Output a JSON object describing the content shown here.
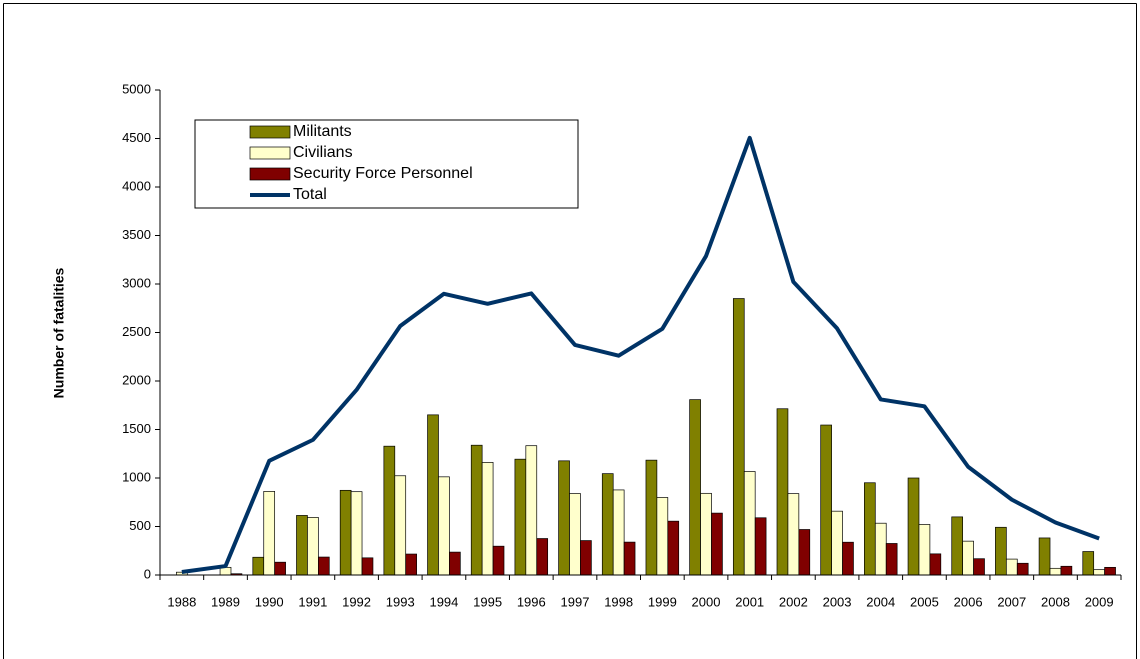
{
  "chart_data": {
    "type": "bar-line",
    "y_label": "Number of fatalities",
    "categories": [
      "1988",
      "1989",
      "1990",
      "1991",
      "1992",
      "1993",
      "1994",
      "1995",
      "1996",
      "1997",
      "1998",
      "1999",
      "2000",
      "2001",
      "2002",
      "2003",
      "2004",
      "2005",
      "2006",
      "2007",
      "2008",
      "2009"
    ],
    "series": [
      {
        "name": "Militants",
        "color": "#808000",
        "kind": "bar",
        "values": [
          1,
          0,
          183,
          614,
          873,
          1328,
          1651,
          1338,
          1194,
          1177,
          1045,
          1184,
          1808,
          2850,
          1714,
          1546,
          951,
          1000,
          599,
          492,
          382,
          242
        ]
      },
      {
        "name": "Civilians",
        "color": "#ffffcc",
        "kind": "bar",
        "values": [
          29,
          79,
          862,
          594,
          859,
          1023,
          1012,
          1161,
          1333,
          840,
          877,
          799,
          842,
          1067,
          839,
          658,
          534,
          521,
          349,
          164,
          69,
          55
        ]
      },
      {
        "name": "Security Force Personnel",
        "color": "#800000",
        "kind": "bar",
        "values": [
          1,
          13,
          132,
          185,
          177,
          216,
          236,
          297,
          376,
          355,
          339,
          555,
          638,
          590,
          469,
          338,
          325,
          218,
          168,
          121,
          90,
          79
        ]
      },
      {
        "name": "Total",
        "color": "#003366",
        "kind": "line",
        "values": [
          31,
          92,
          1177,
          1393,
          1909,
          2567,
          2899,
          2796,
          2903,
          2372,
          2261,
          2538,
          3288,
          4507,
          3022,
          2542,
          1810,
          1739,
          1116,
          777,
          541,
          376
        ]
      }
    ],
    "ylim": [
      0,
      5000
    ],
    "yticks": [
      0,
      500,
      1000,
      1500,
      2000,
      2500,
      3000,
      3500,
      4000,
      4500,
      5000
    ],
    "legend": "upper left"
  }
}
